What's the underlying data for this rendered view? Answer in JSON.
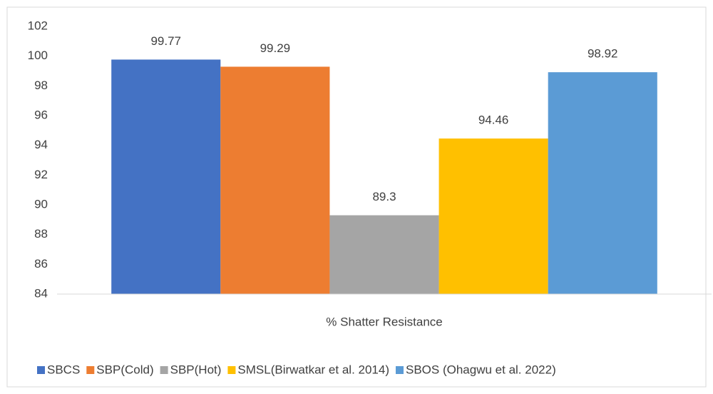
{
  "chart_data": {
    "type": "bar",
    "categories": [
      "% Shatter Resistance"
    ],
    "series": [
      {
        "name": "SBCS",
        "color": "#4472c4",
        "values": [
          99.77
        ]
      },
      {
        "name": "SBP(Cold)",
        "color": "#ed7d31",
        "values": [
          99.29
        ]
      },
      {
        "name": "SBP(Hot)",
        "color": "#a5a5a5",
        "values": [
          89.3
        ]
      },
      {
        "name": "SMSL(Birwatkar et al. 2014)",
        "color": "#ffc000",
        "values": [
          94.46
        ]
      },
      {
        "name": "SBOS (Ohagwu et al. 2022)",
        "color": "#5b9bd5",
        "values": [
          98.92
        ]
      }
    ],
    "ylim": [
      84,
      102
    ],
    "yticks": [
      84,
      86,
      88,
      90,
      92,
      94,
      96,
      98,
      100,
      102
    ],
    "grid": false,
    "legend": "bottom"
  }
}
